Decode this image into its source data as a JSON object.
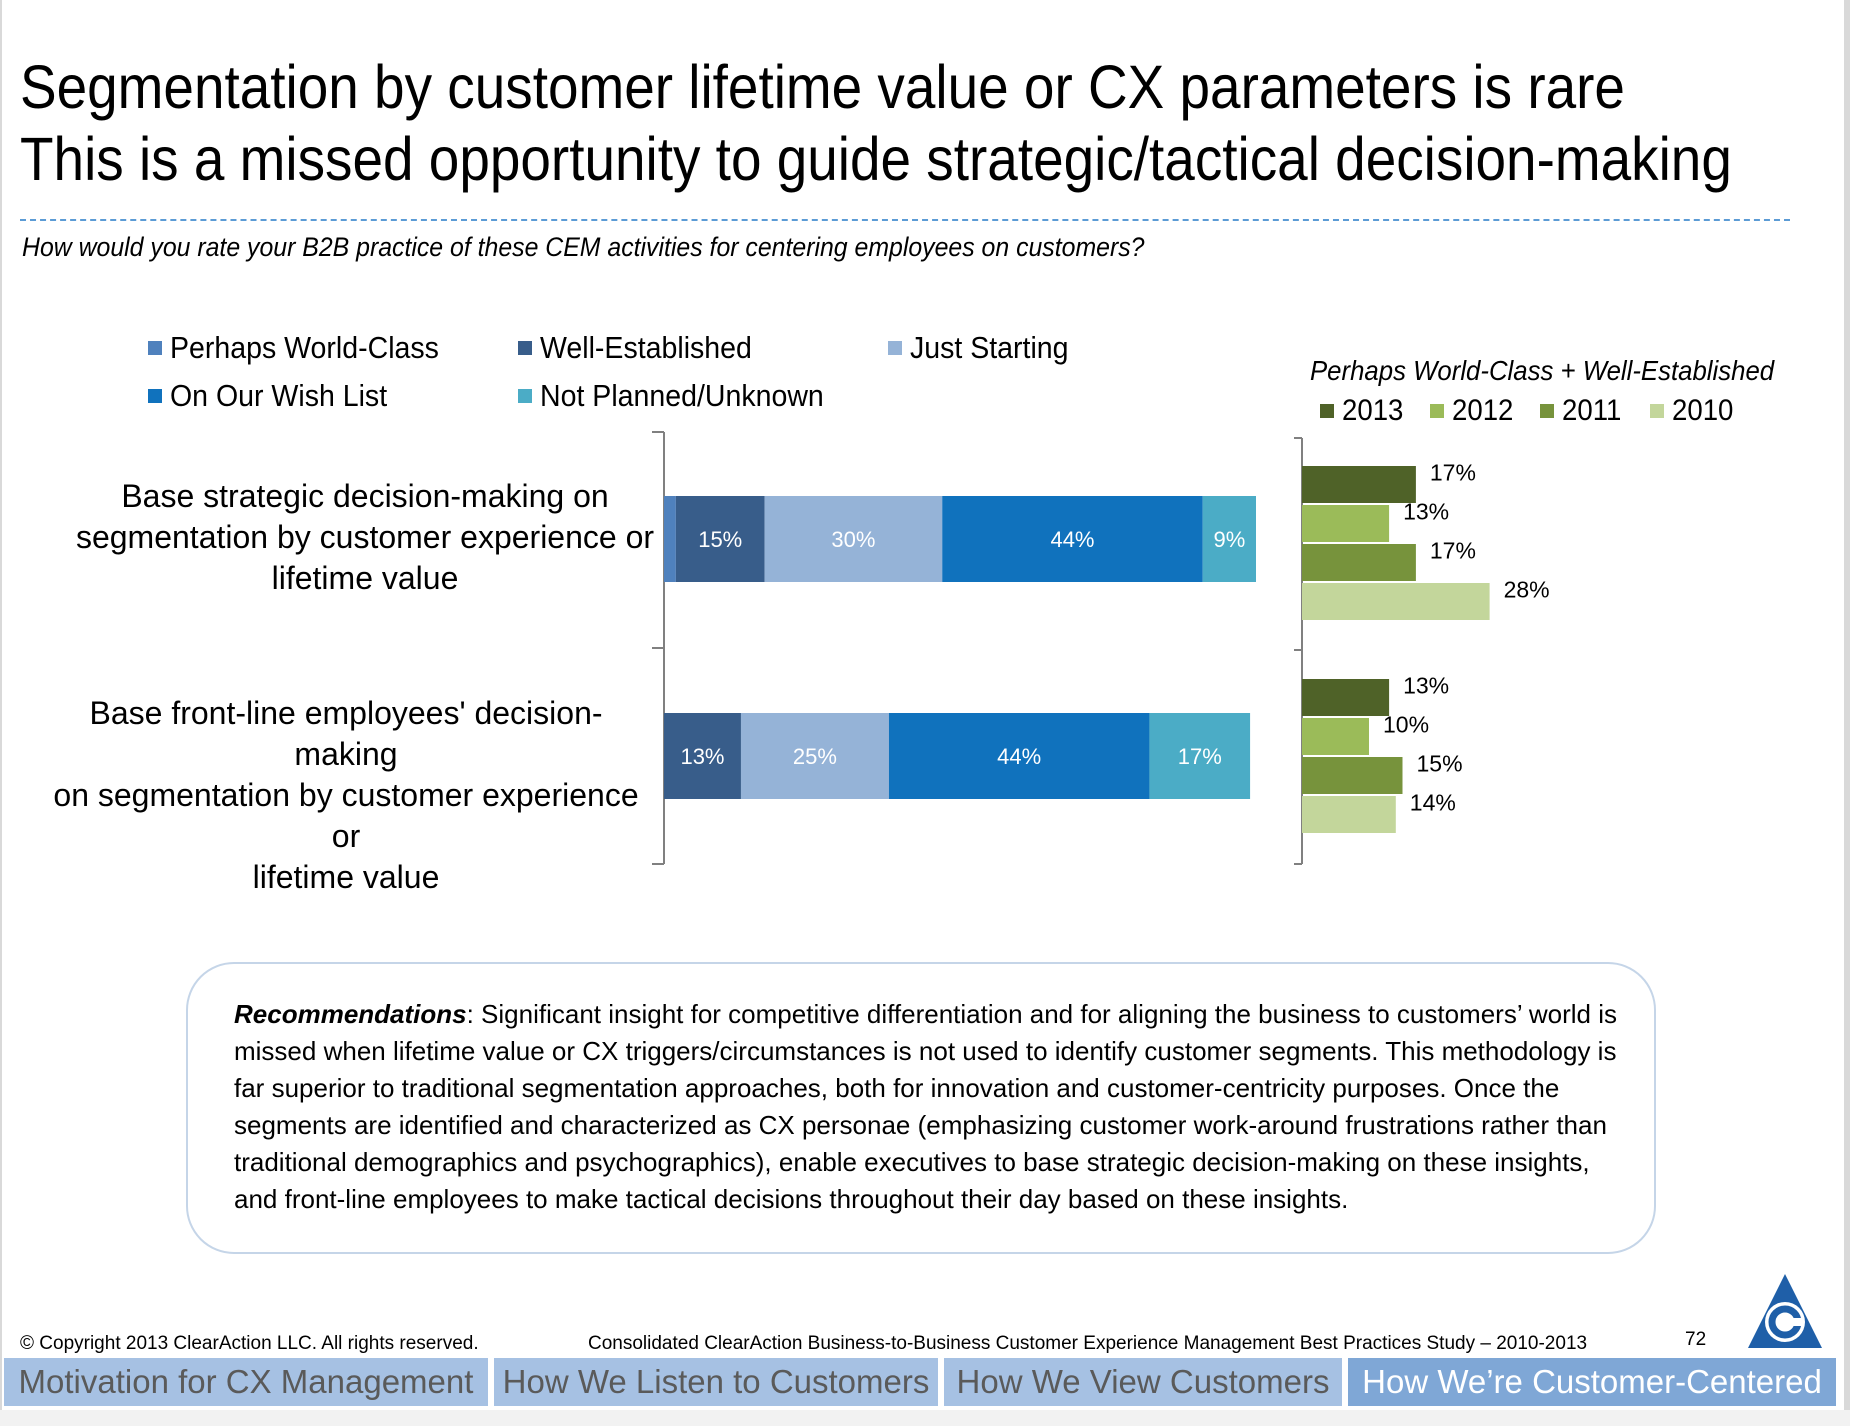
{
  "title": {
    "line1": "Segmentation by customer lifetime value or CX parameters is rare",
    "line2": "This is a missed opportunity to guide strategic/tactical decision-making"
  },
  "question": "How would you rate your B2B practice of these CEM activities for centering employees on customers?",
  "colors": {
    "world_class": "#4f81bd",
    "well_established": "#385d8a",
    "just_starting": "#95b3d7",
    "wish_list": "#1072bd",
    "not_planned": "#4bacc6",
    "y2013": "#4f6228",
    "y2012": "#9bbb59",
    "y2011": "#77933c",
    "y2010": "#c3d69b"
  },
  "chart_data": [
    {
      "type": "bar",
      "orientation": "horizontal",
      "stacked": true,
      "categories": [
        "Base strategic decision-making on segmentation by customer experience or lifetime value",
        "Base front-line employees' decision-making on segmentation by customer experience or lifetime value"
      ],
      "series": [
        {
          "name": "Perhaps World-Class",
          "values": [
            2,
            0
          ],
          "labels": [
            "",
            ""
          ]
        },
        {
          "name": "Well-Established",
          "values": [
            15,
            13
          ],
          "labels": [
            "15%",
            "13%"
          ]
        },
        {
          "name": "Just Starting",
          "values": [
            30,
            25
          ],
          "labels": [
            "30%",
            "25%"
          ]
        },
        {
          "name": "On Our Wish List",
          "values": [
            44,
            44
          ],
          "labels": [
            "44%",
            "44%"
          ]
        },
        {
          "name": "Not Planned/Unknown",
          "values": [
            9,
            17
          ],
          "labels": [
            "9%",
            "17%"
          ]
        }
      ],
      "legend": [
        "Perhaps World-Class",
        "Well-Established",
        "Just Starting",
        "On Our Wish List",
        "Not Planned/Unknown"
      ],
      "legend_position": "top"
    },
    {
      "type": "bar",
      "orientation": "horizontal",
      "title": "Perhaps World-Class + Well-Established",
      "categories": [
        "Base strategic decision-making",
        "Base front-line employees' decision-making"
      ],
      "series": [
        {
          "name": "2013",
          "values": [
            17,
            13
          ],
          "labels": [
            "17%",
            "13%"
          ]
        },
        {
          "name": "2012",
          "values": [
            13,
            10
          ],
          "labels": [
            "13%",
            "10%"
          ]
        },
        {
          "name": "2011",
          "values": [
            17,
            15
          ],
          "labels": [
            "17%",
            "15%"
          ]
        },
        {
          "name": "2010",
          "values": [
            28,
            14
          ],
          "labels": [
            "28%",
            "14%"
          ]
        }
      ],
      "legend": [
        "2013",
        "2012",
        "2011",
        "2010"
      ],
      "legend_position": "top"
    }
  ],
  "category_labels": {
    "cat1_line1": "Base strategic decision-making on",
    "cat1_line2": "segmentation by customer experience or",
    "cat1_line3": "lifetime value",
    "cat2_line1": "Base front-line employees' decision-making",
    "cat2_line2": "on segmentation by customer experience or",
    "cat2_line3": "lifetime value"
  },
  "recommendations": {
    "heading": "Recommendations",
    "text": ":  Significant insight for competitive differentiation and for aligning the business to customers’ world is missed when lifetime value or CX triggers/circumstances is not used to identify customer segments.  This methodology is far superior to traditional segmentation approaches, both for innovation and customer-centricity purposes. Once the segments are identified and characterized as CX personae (emphasizing customer work-around frustrations rather than traditional demographics and psychographics), enable executives to base strategic decision-making on these insights, and front-line employees to make tactical decisions throughout their day based on these insights."
  },
  "footer": {
    "copyright": "© Copyright 2013 ClearAction LLC. All rights reserved.",
    "study": "Consolidated ClearAction Business-to-Business Customer Experience Management Best Practices Study – 2010-2013",
    "page_number": "72"
  },
  "nav": {
    "tabs": [
      "Motivation for CX Management",
      "How We Listen to Customers",
      "How We View Customers",
      "How We’re Customer-Centered"
    ],
    "active_index": 3
  },
  "logo": {
    "icon": "clearaction-logo-icon"
  }
}
